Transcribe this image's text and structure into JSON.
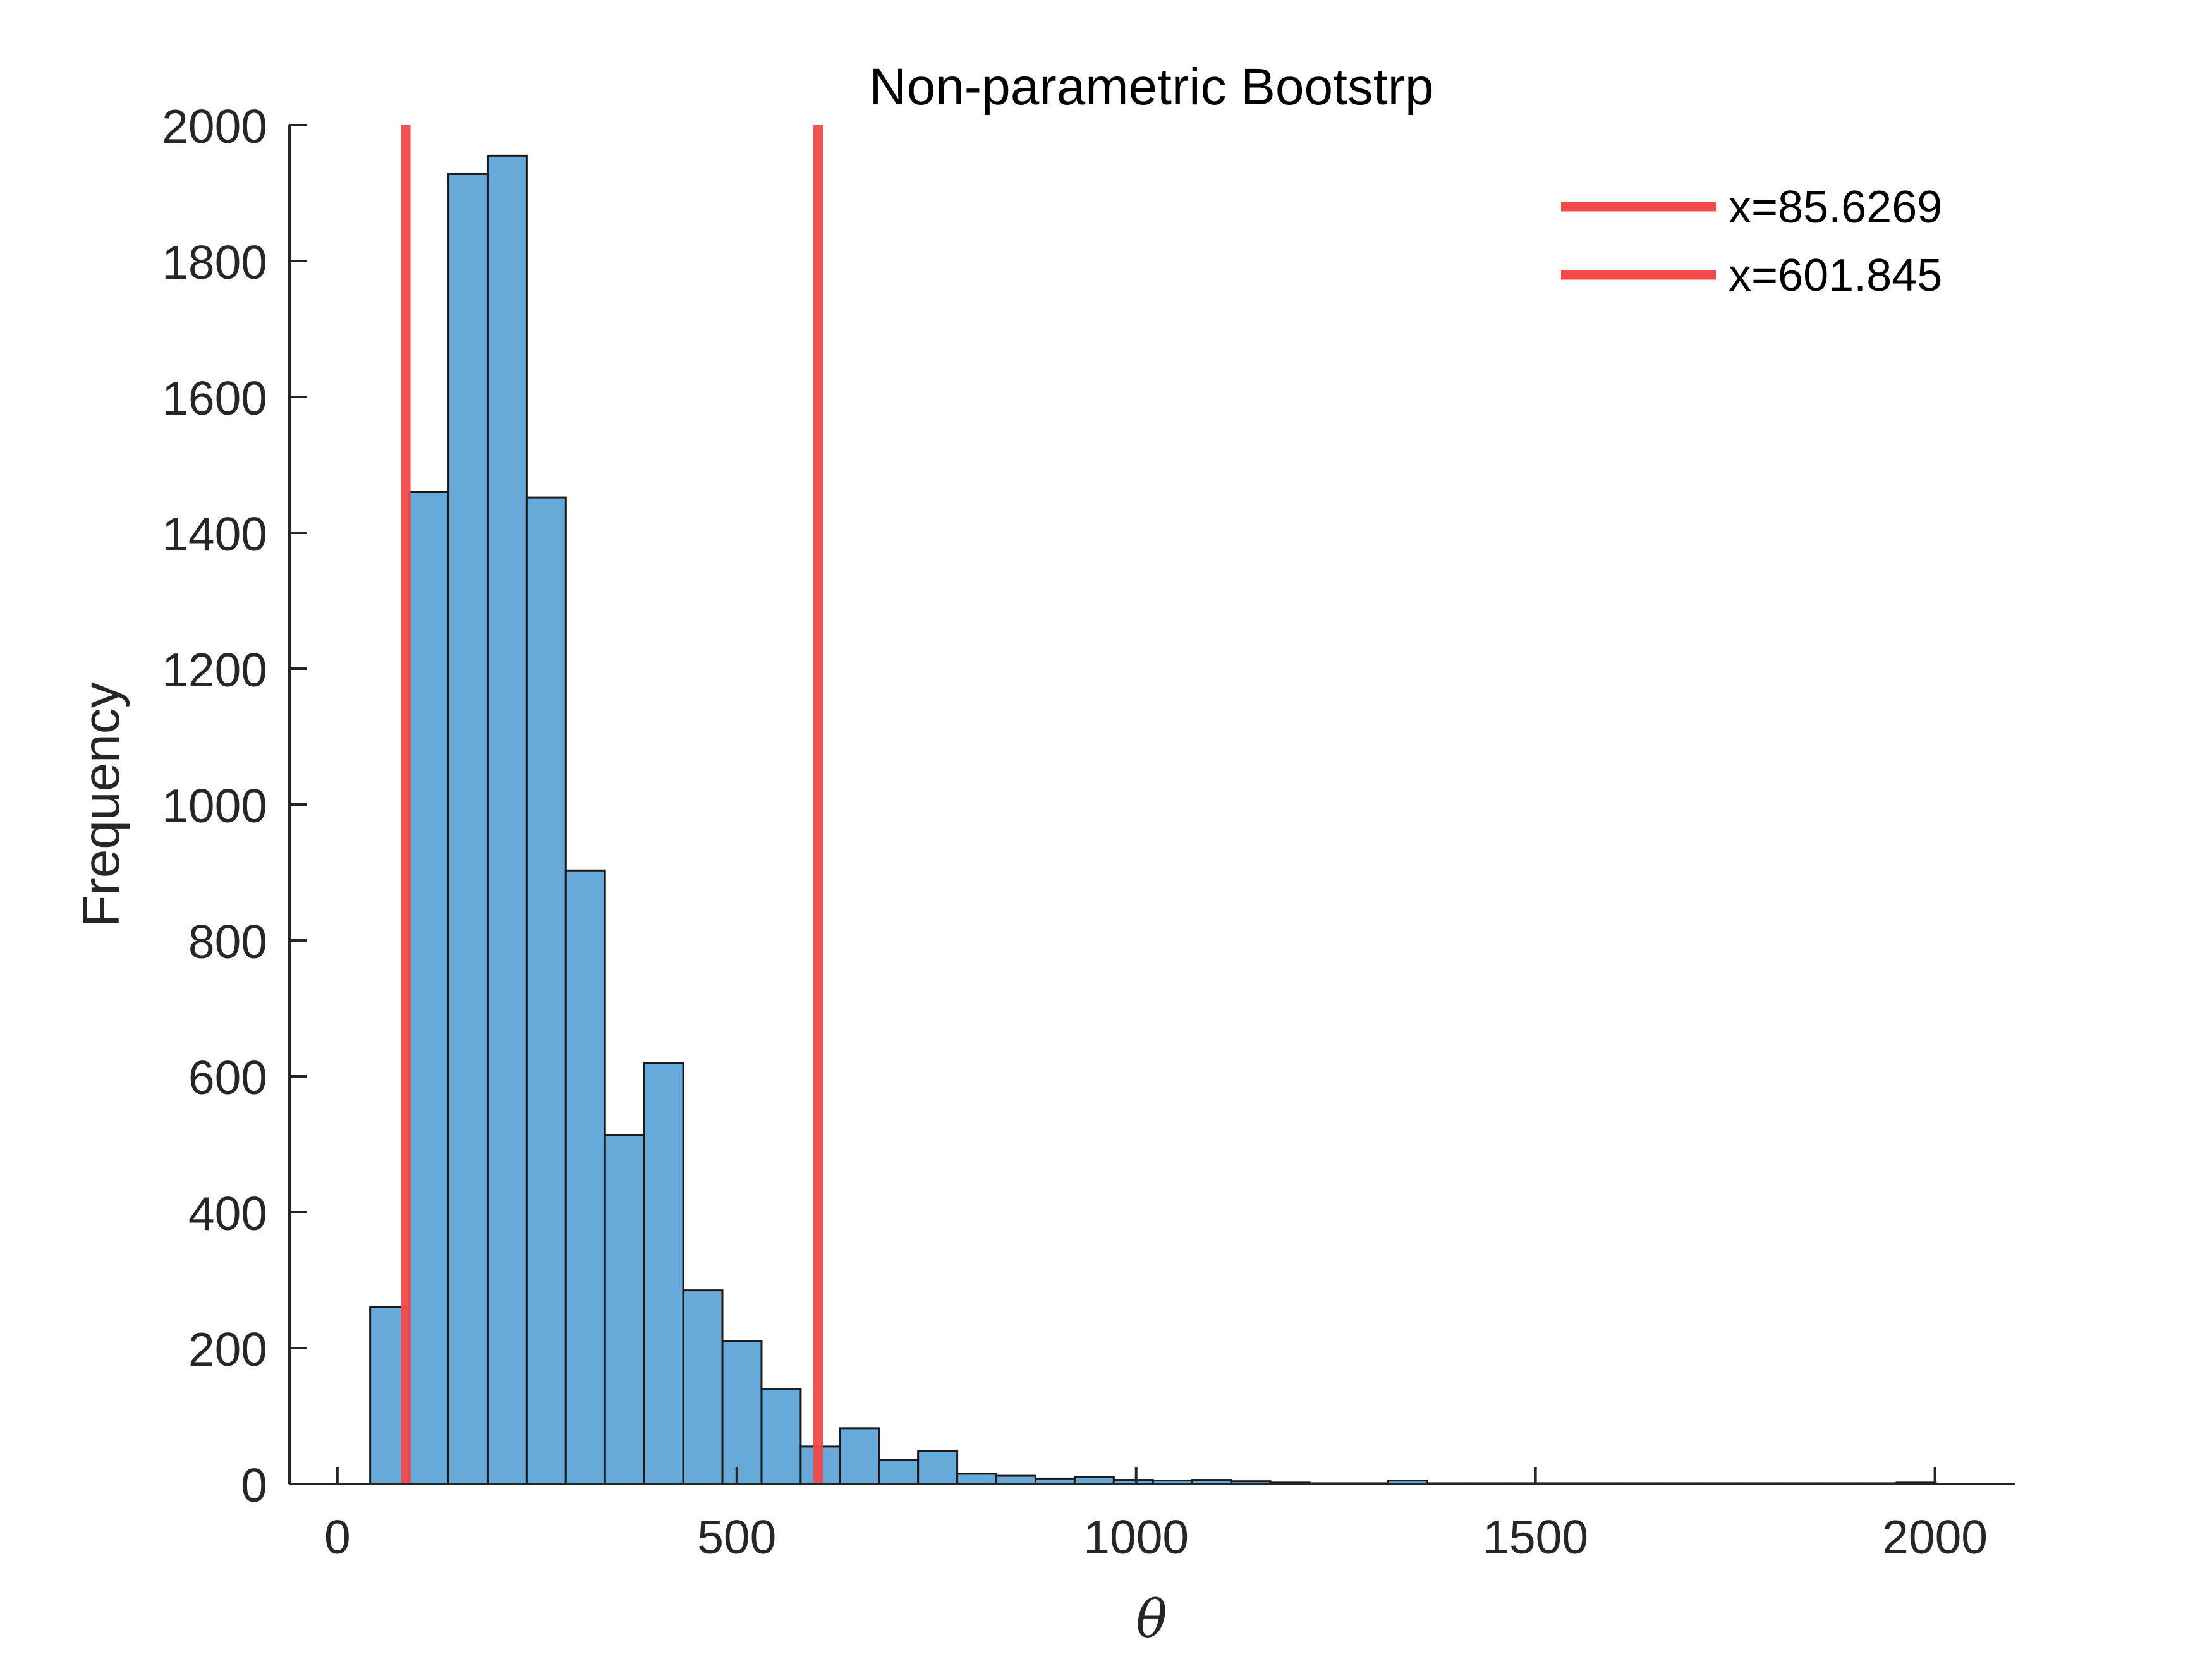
{
  "chart_data": {
    "type": "bar",
    "title": "Non-parametric Bootstrp",
    "xlabel": "θ",
    "ylabel": "Frequency",
    "xlim": [
      -60,
      2100
    ],
    "ylim": [
      0,
      2000
    ],
    "xticks": [
      0,
      500,
      1000,
      1500,
      2000
    ],
    "yticks": [
      0,
      200,
      400,
      600,
      800,
      1000,
      1200,
      1400,
      1600,
      1800,
      2000
    ],
    "bin_width": 49,
    "bins": [
      {
        "x0": 41,
        "value": 260
      },
      {
        "x0": 90,
        "value": 1460
      },
      {
        "x0": 139,
        "value": 1928
      },
      {
        "x0": 188,
        "value": 1955
      },
      {
        "x0": 237,
        "value": 1452
      },
      {
        "x0": 286,
        "value": 903
      },
      {
        "x0": 335,
        "value": 513
      },
      {
        "x0": 384,
        "value": 620
      },
      {
        "x0": 433,
        "value": 285
      },
      {
        "x0": 482,
        "value": 210
      },
      {
        "x0": 531,
        "value": 140
      },
      {
        "x0": 580,
        "value": 55
      },
      {
        "x0": 629,
        "value": 82
      },
      {
        "x0": 678,
        "value": 35
      },
      {
        "x0": 727,
        "value": 48
      },
      {
        "x0": 776,
        "value": 15
      },
      {
        "x0": 825,
        "value": 12
      },
      {
        "x0": 874,
        "value": 8
      },
      {
        "x0": 923,
        "value": 10
      },
      {
        "x0": 972,
        "value": 6
      },
      {
        "x0": 1021,
        "value": 5
      },
      {
        "x0": 1070,
        "value": 6
      },
      {
        "x0": 1119,
        "value": 4
      },
      {
        "x0": 1168,
        "value": 2
      },
      {
        "x0": 1217,
        "value": 1
      },
      {
        "x0": 1266,
        "value": 1
      },
      {
        "x0": 1315,
        "value": 5
      },
      {
        "x0": 1364,
        "value": 1
      },
      {
        "x0": 1413,
        "value": 1
      },
      {
        "x0": 1462,
        "value": 1
      },
      {
        "x0": 1511,
        "value": 1
      },
      {
        "x0": 1560,
        "value": 1
      },
      {
        "x0": 1609,
        "value": 1
      },
      {
        "x0": 1658,
        "value": 1
      },
      {
        "x0": 1707,
        "value": 1
      },
      {
        "x0": 1756,
        "value": 1
      },
      {
        "x0": 1805,
        "value": 1
      },
      {
        "x0": 1854,
        "value": 1
      },
      {
        "x0": 1903,
        "value": 1
      },
      {
        "x0": 1952,
        "value": 2
      }
    ],
    "vlines": [
      {
        "x": 85.6269,
        "label": "x=85.6269"
      },
      {
        "x": 601.845,
        "label": "x=601.845"
      }
    ],
    "legend_position": "top-right",
    "grid": false,
    "bar_color": "#67a9d8",
    "bar_edge_color": "#1a1a1a",
    "line_color": "#f54848"
  }
}
